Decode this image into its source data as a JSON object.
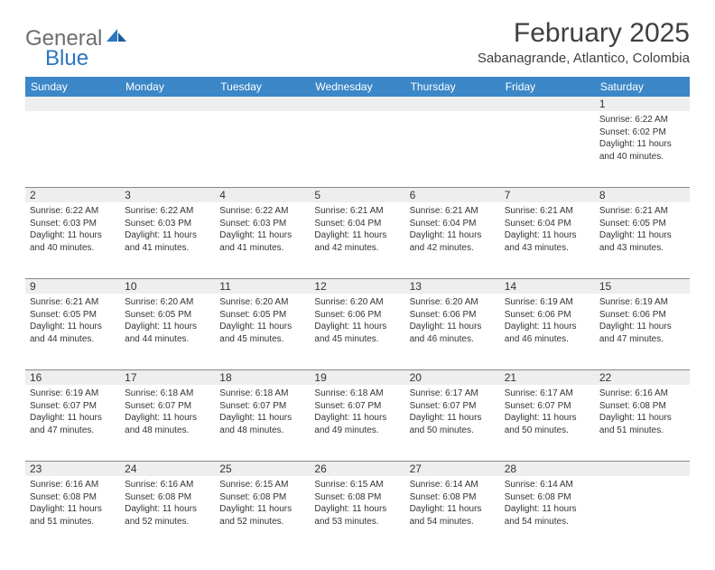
{
  "logo": {
    "word1": "General",
    "word2": "Blue",
    "word1_color": "#6d6e71",
    "word2_color": "#2b77c0"
  },
  "title": "February 2025",
  "location": "Sabanagrande, Atlantico, Colombia",
  "colors": {
    "header_bar": "#3b87c8",
    "header_text": "#ffffff",
    "daynum_bg": "#eeeeee",
    "rule": "#888888",
    "body_text": "#333333",
    "page_bg": "#ffffff"
  },
  "typography": {
    "title_fontsize": 30,
    "subtitle_fontsize": 15,
    "weekday_fontsize": 12,
    "daynum_fontsize": 12,
    "cell_fontsize": 10
  },
  "weekdays": [
    "Sunday",
    "Monday",
    "Tuesday",
    "Wednesday",
    "Thursday",
    "Friday",
    "Saturday"
  ],
  "weeks": [
    [
      {
        "num": "",
        "lines": []
      },
      {
        "num": "",
        "lines": []
      },
      {
        "num": "",
        "lines": []
      },
      {
        "num": "",
        "lines": []
      },
      {
        "num": "",
        "lines": []
      },
      {
        "num": "",
        "lines": []
      },
      {
        "num": "1",
        "lines": [
          "Sunrise: 6:22 AM",
          "Sunset: 6:02 PM",
          "Daylight: 11 hours and 40 minutes."
        ]
      }
    ],
    [
      {
        "num": "2",
        "lines": [
          "Sunrise: 6:22 AM",
          "Sunset: 6:03 PM",
          "Daylight: 11 hours and 40 minutes."
        ]
      },
      {
        "num": "3",
        "lines": [
          "Sunrise: 6:22 AM",
          "Sunset: 6:03 PM",
          "Daylight: 11 hours and 41 minutes."
        ]
      },
      {
        "num": "4",
        "lines": [
          "Sunrise: 6:22 AM",
          "Sunset: 6:03 PM",
          "Daylight: 11 hours and 41 minutes."
        ]
      },
      {
        "num": "5",
        "lines": [
          "Sunrise: 6:21 AM",
          "Sunset: 6:04 PM",
          "Daylight: 11 hours and 42 minutes."
        ]
      },
      {
        "num": "6",
        "lines": [
          "Sunrise: 6:21 AM",
          "Sunset: 6:04 PM",
          "Daylight: 11 hours and 42 minutes."
        ]
      },
      {
        "num": "7",
        "lines": [
          "Sunrise: 6:21 AM",
          "Sunset: 6:04 PM",
          "Daylight: 11 hours and 43 minutes."
        ]
      },
      {
        "num": "8",
        "lines": [
          "Sunrise: 6:21 AM",
          "Sunset: 6:05 PM",
          "Daylight: 11 hours and 43 minutes."
        ]
      }
    ],
    [
      {
        "num": "9",
        "lines": [
          "Sunrise: 6:21 AM",
          "Sunset: 6:05 PM",
          "Daylight: 11 hours and 44 minutes."
        ]
      },
      {
        "num": "10",
        "lines": [
          "Sunrise: 6:20 AM",
          "Sunset: 6:05 PM",
          "Daylight: 11 hours and 44 minutes."
        ]
      },
      {
        "num": "11",
        "lines": [
          "Sunrise: 6:20 AM",
          "Sunset: 6:05 PM",
          "Daylight: 11 hours and 45 minutes."
        ]
      },
      {
        "num": "12",
        "lines": [
          "Sunrise: 6:20 AM",
          "Sunset: 6:06 PM",
          "Daylight: 11 hours and 45 minutes."
        ]
      },
      {
        "num": "13",
        "lines": [
          "Sunrise: 6:20 AM",
          "Sunset: 6:06 PM",
          "Daylight: 11 hours and 46 minutes."
        ]
      },
      {
        "num": "14",
        "lines": [
          "Sunrise: 6:19 AM",
          "Sunset: 6:06 PM",
          "Daylight: 11 hours and 46 minutes."
        ]
      },
      {
        "num": "15",
        "lines": [
          "Sunrise: 6:19 AM",
          "Sunset: 6:06 PM",
          "Daylight: 11 hours and 47 minutes."
        ]
      }
    ],
    [
      {
        "num": "16",
        "lines": [
          "Sunrise: 6:19 AM",
          "Sunset: 6:07 PM",
          "Daylight: 11 hours and 47 minutes."
        ]
      },
      {
        "num": "17",
        "lines": [
          "Sunrise: 6:18 AM",
          "Sunset: 6:07 PM",
          "Daylight: 11 hours and 48 minutes."
        ]
      },
      {
        "num": "18",
        "lines": [
          "Sunrise: 6:18 AM",
          "Sunset: 6:07 PM",
          "Daylight: 11 hours and 48 minutes."
        ]
      },
      {
        "num": "19",
        "lines": [
          "Sunrise: 6:18 AM",
          "Sunset: 6:07 PM",
          "Daylight: 11 hours and 49 minutes."
        ]
      },
      {
        "num": "20",
        "lines": [
          "Sunrise: 6:17 AM",
          "Sunset: 6:07 PM",
          "Daylight: 11 hours and 50 minutes."
        ]
      },
      {
        "num": "21",
        "lines": [
          "Sunrise: 6:17 AM",
          "Sunset: 6:07 PM",
          "Daylight: 11 hours and 50 minutes."
        ]
      },
      {
        "num": "22",
        "lines": [
          "Sunrise: 6:16 AM",
          "Sunset: 6:08 PM",
          "Daylight: 11 hours and 51 minutes."
        ]
      }
    ],
    [
      {
        "num": "23",
        "lines": [
          "Sunrise: 6:16 AM",
          "Sunset: 6:08 PM",
          "Daylight: 11 hours and 51 minutes."
        ]
      },
      {
        "num": "24",
        "lines": [
          "Sunrise: 6:16 AM",
          "Sunset: 6:08 PM",
          "Daylight: 11 hours and 52 minutes."
        ]
      },
      {
        "num": "25",
        "lines": [
          "Sunrise: 6:15 AM",
          "Sunset: 6:08 PM",
          "Daylight: 11 hours and 52 minutes."
        ]
      },
      {
        "num": "26",
        "lines": [
          "Sunrise: 6:15 AM",
          "Sunset: 6:08 PM",
          "Daylight: 11 hours and 53 minutes."
        ]
      },
      {
        "num": "27",
        "lines": [
          "Sunrise: 6:14 AM",
          "Sunset: 6:08 PM",
          "Daylight: 11 hours and 54 minutes."
        ]
      },
      {
        "num": "28",
        "lines": [
          "Sunrise: 6:14 AM",
          "Sunset: 6:08 PM",
          "Daylight: 11 hours and 54 minutes."
        ]
      },
      {
        "num": "",
        "lines": []
      }
    ]
  ]
}
